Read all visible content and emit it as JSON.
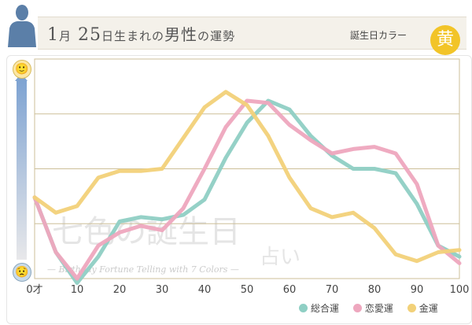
{
  "header": {
    "month": "1",
    "month_unit": "月",
    "day": "25",
    "suffix_small": "日生まれの",
    "gender_label": "男性",
    "suffix2": "の運勢",
    "birthday_color_label": "誕生日カラー",
    "color_badge": "黄"
  },
  "faces": {
    "happy": "🙂",
    "sad": "😟"
  },
  "watermark": {
    "main": "七色の誕生日",
    "second": "占い",
    "sub": "— Birthday Fortune Telling with 7 Colors —"
  },
  "colors": {
    "overall": "#8fcfc4",
    "love": "#eea7be",
    "money": "#f2d179",
    "grid": "#cdbf98"
  },
  "chart_data": {
    "type": "line",
    "title": "",
    "xlabel": "",
    "ylabel": "",
    "x": [
      0,
      5,
      10,
      15,
      20,
      25,
      30,
      35,
      40,
      45,
      50,
      55,
      60,
      65,
      70,
      75,
      80,
      85,
      90,
      95,
      100
    ],
    "x_ticks": [
      "0才",
      "10",
      "20",
      "30",
      "40",
      "50",
      "60",
      "70",
      "80",
      "90",
      "100"
    ],
    "x_tick_values": [
      0,
      10,
      20,
      30,
      40,
      50,
      60,
      70,
      80,
      90,
      100
    ],
    "xlim": [
      0,
      100
    ],
    "ylim": [
      0,
      100
    ],
    "grid": true,
    "series": [
      {
        "name": "総合運",
        "color_key": "overall",
        "values": [
          37,
          12,
          -2,
          10,
          26,
          28,
          27,
          29,
          36,
          55,
          71,
          81,
          77,
          65,
          56,
          50,
          50,
          48,
          34,
          15,
          10
        ]
      },
      {
        "name": "恋愛運",
        "color_key": "love",
        "values": [
          37,
          12,
          0,
          15,
          21,
          24,
          22,
          32,
          50,
          69,
          81,
          80,
          70,
          63,
          57,
          59,
          60,
          57,
          43,
          15,
          7
        ]
      },
      {
        "name": "金運",
        "color_key": "money",
        "values": [
          37,
          30,
          33,
          46,
          49,
          49,
          50,
          64,
          78,
          85,
          79,
          65,
          46,
          32,
          28,
          30,
          23,
          11,
          8,
          12,
          13
        ]
      }
    ],
    "legend_position": "bottom-right"
  }
}
